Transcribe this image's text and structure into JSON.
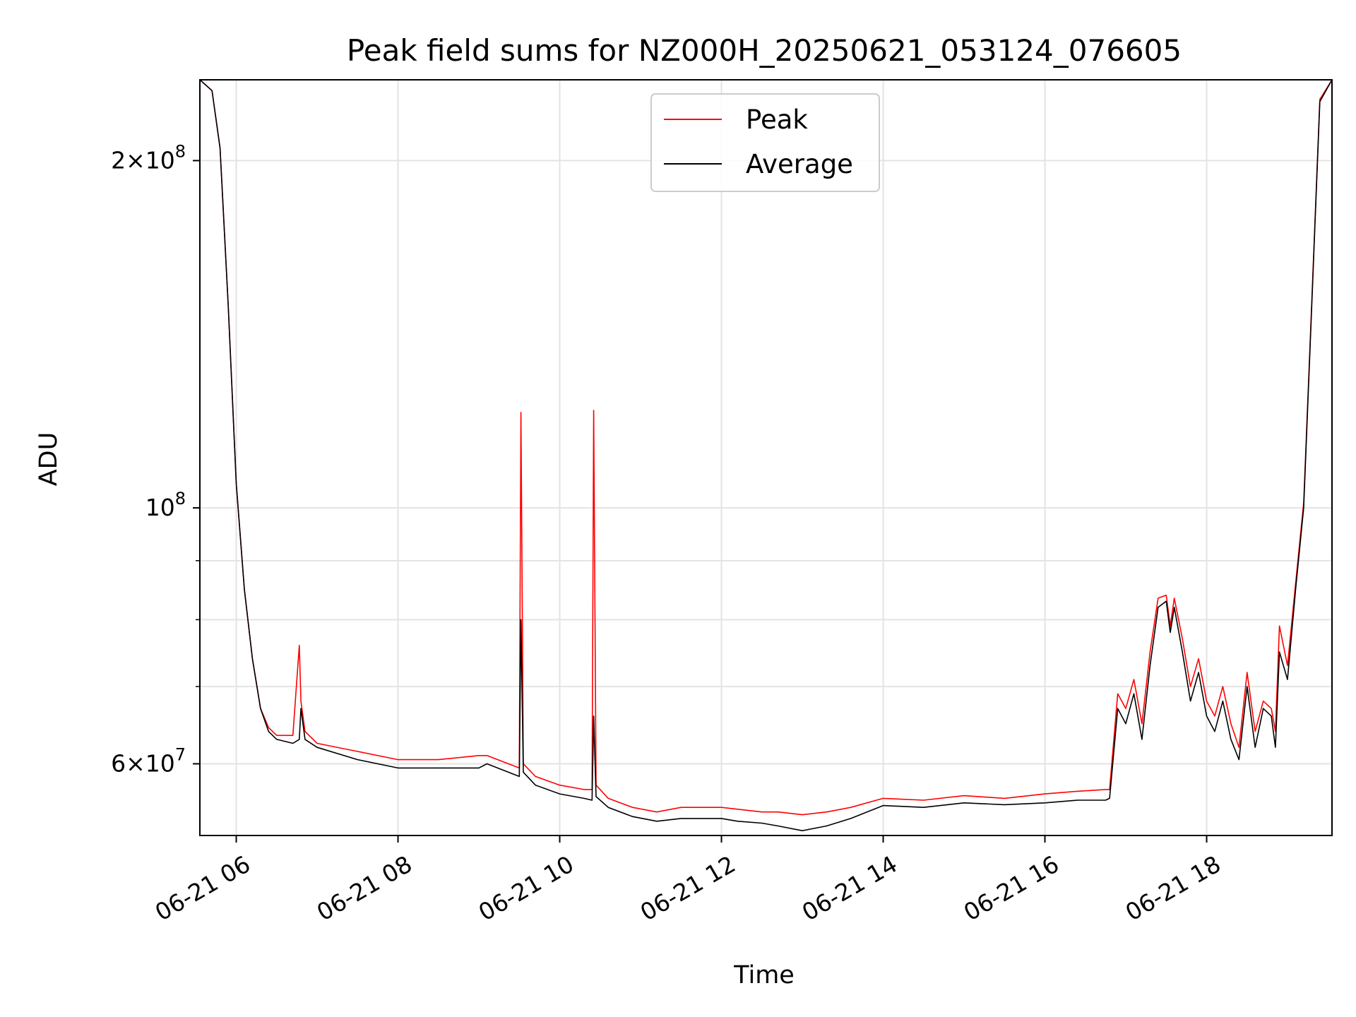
{
  "chart_data": {
    "type": "line",
    "title": "Peak field sums for NZ000H_20250621_053124_076605",
    "xlabel": "Time",
    "ylabel": "ADU",
    "x_unit": "hour of 2025-06-21",
    "xlim": [
      5.55,
      19.55
    ],
    "ylim": [
      52000000,
      235000000
    ],
    "yscale": "log",
    "grid": true,
    "legend": {
      "position": "top-center",
      "entries": [
        "Peak",
        "Average"
      ]
    },
    "x_ticks": [
      {
        "value": 6,
        "label": "06-21 06"
      },
      {
        "value": 8,
        "label": "06-21 08"
      },
      {
        "value": 10,
        "label": "06-21 10"
      },
      {
        "value": 12,
        "label": "06-21 12"
      },
      {
        "value": 14,
        "label": "06-21 14"
      },
      {
        "value": 16,
        "label": "06-21 16"
      },
      {
        "value": 18,
        "label": "06-21 18"
      }
    ],
    "y_major_ticks": [
      {
        "value": 60000000,
        "mantissa": "6",
        "exponent": "7"
      },
      {
        "value": 100000000,
        "mantissa": "",
        "exponent": "8"
      },
      {
        "value": 200000000,
        "mantissa": "2",
        "exponent": "8"
      }
    ],
    "y_minor_ticks": [
      70000000,
      80000000,
      90000000
    ],
    "colors": {
      "peak": "#ff0000",
      "average": "#000000"
    },
    "series": [
      {
        "name": "Average",
        "x": [
          5.55,
          5.7,
          5.8,
          5.9,
          6.0,
          6.1,
          6.2,
          6.3,
          6.4,
          6.5,
          6.7,
          6.78,
          6.8,
          6.85,
          7.0,
          7.5,
          8.0,
          8.5,
          9.0,
          9.1,
          9.5,
          9.52,
          9.55,
          9.7,
          10.0,
          10.3,
          10.4,
          10.42,
          10.45,
          10.6,
          10.9,
          11.2,
          11.5,
          12.0,
          12.2,
          12.5,
          12.7,
          13.0,
          13.3,
          13.6,
          14.0,
          14.5,
          15.0,
          15.5,
          16.0,
          16.4,
          16.75,
          16.8,
          16.9,
          17.0,
          17.1,
          17.2,
          17.3,
          17.4,
          17.5,
          17.55,
          17.6,
          17.7,
          17.8,
          17.9,
          18.0,
          18.1,
          18.2,
          18.3,
          18.4,
          18.5,
          18.6,
          18.7,
          18.8,
          18.85,
          18.9,
          19.0,
          19.1,
          19.2,
          19.3,
          19.4,
          19.55
        ],
        "values": [
          235000000,
          230000000,
          205000000,
          150000000,
          105000000,
          85000000,
          74000000,
          67000000,
          64000000,
          63000000,
          62500000,
          63000000,
          67000000,
          63000000,
          62000000,
          60500000,
          59500000,
          59500000,
          59500000,
          60000000,
          58500000,
          80000000,
          59000000,
          57500000,
          56500000,
          56000000,
          55800000,
          66000000,
          56200000,
          55000000,
          54000000,
          53500000,
          53800000,
          53800000,
          53500000,
          53300000,
          53000000,
          52500000,
          53000000,
          53800000,
          55200000,
          55000000,
          55500000,
          55300000,
          55500000,
          55800000,
          55800000,
          56000000,
          67000000,
          65000000,
          69000000,
          63000000,
          73000000,
          82000000,
          83000000,
          78000000,
          82000000,
          75000000,
          68000000,
          72000000,
          66000000,
          64000000,
          68000000,
          63000000,
          60500000,
          70000000,
          62000000,
          67000000,
          66000000,
          62000000,
          75000000,
          71000000,
          85000000,
          100000000,
          150000000,
          225000000,
          235000000
        ]
      },
      {
        "name": "Peak",
        "x": [
          5.55,
          5.7,
          5.8,
          5.9,
          6.0,
          6.1,
          6.2,
          6.3,
          6.4,
          6.5,
          6.7,
          6.78,
          6.8,
          6.85,
          7.0,
          7.5,
          8.0,
          8.5,
          9.0,
          9.1,
          9.5,
          9.52,
          9.55,
          9.7,
          10.0,
          10.3,
          10.4,
          10.42,
          10.45,
          10.6,
          10.9,
          11.2,
          11.5,
          12.0,
          12.2,
          12.5,
          12.7,
          13.0,
          13.3,
          13.6,
          14.0,
          14.5,
          15.0,
          15.5,
          16.0,
          16.4,
          16.75,
          16.8,
          16.9,
          17.0,
          17.1,
          17.2,
          17.3,
          17.4,
          17.5,
          17.55,
          17.6,
          17.7,
          17.8,
          17.9,
          18.0,
          18.1,
          18.2,
          18.3,
          18.4,
          18.5,
          18.6,
          18.7,
          18.8,
          18.85,
          18.9,
          19.0,
          19.1,
          19.2,
          19.3,
          19.4,
          19.55
        ],
        "values": [
          235000000,
          230000000,
          205000000,
          150000000,
          105000000,
          85000000,
          74000000,
          67000000,
          64500000,
          63500000,
          63500000,
          76000000,
          68000000,
          64000000,
          62500000,
          61500000,
          60500000,
          60500000,
          61000000,
          61000000,
          59500000,
          121000000,
          60000000,
          58500000,
          57500000,
          57000000,
          57000000,
          121500000,
          57500000,
          56000000,
          55000000,
          54500000,
          55000000,
          55000000,
          54800000,
          54500000,
          54500000,
          54200000,
          54500000,
          55000000,
          56000000,
          55800000,
          56300000,
          56000000,
          56500000,
          56800000,
          57000000,
          57000000,
          69000000,
          67000000,
          71000000,
          65000000,
          75000000,
          83500000,
          84000000,
          79000000,
          83500000,
          77000000,
          70000000,
          74000000,
          68000000,
          66000000,
          70000000,
          65000000,
          62000000,
          72000000,
          64000000,
          68000000,
          67000000,
          64000000,
          79000000,
          73000000,
          86000000,
          101000000,
          151000000,
          226000000,
          235000000
        ]
      }
    ]
  }
}
